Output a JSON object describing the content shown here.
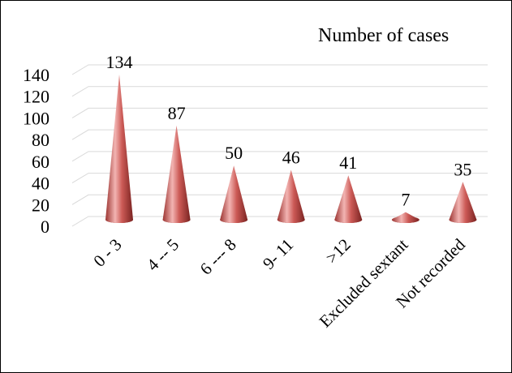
{
  "chart_data": {
    "type": "bar",
    "mark": "cone",
    "title": "",
    "legend": {
      "label": "Number of cases",
      "position": "top-right"
    },
    "categories": [
      "0  - 3",
      "4 -- 5",
      "6 --- 8",
      "9-  11",
      ">12",
      "Excluded sextant",
      "Not recorded"
    ],
    "series": [
      {
        "name": "Number of cases",
        "values": [
          134,
          87,
          50,
          46,
          41,
          7,
          35
        ]
      }
    ],
    "data_labels": [
      "134",
      "87",
      "50",
      "46",
      "41",
      "7",
      "35"
    ],
    "y_ticks": [
      "0",
      "20",
      "40",
      "60",
      "80",
      "100",
      "120",
      "140"
    ],
    "ylim": [
      0,
      140
    ],
    "grid": true,
    "colors": {
      "cone": "#c0504d",
      "cone_light": "#f2b4b2",
      "cone_dark": "#7a2321",
      "grid": "#d9d9d9"
    }
  }
}
